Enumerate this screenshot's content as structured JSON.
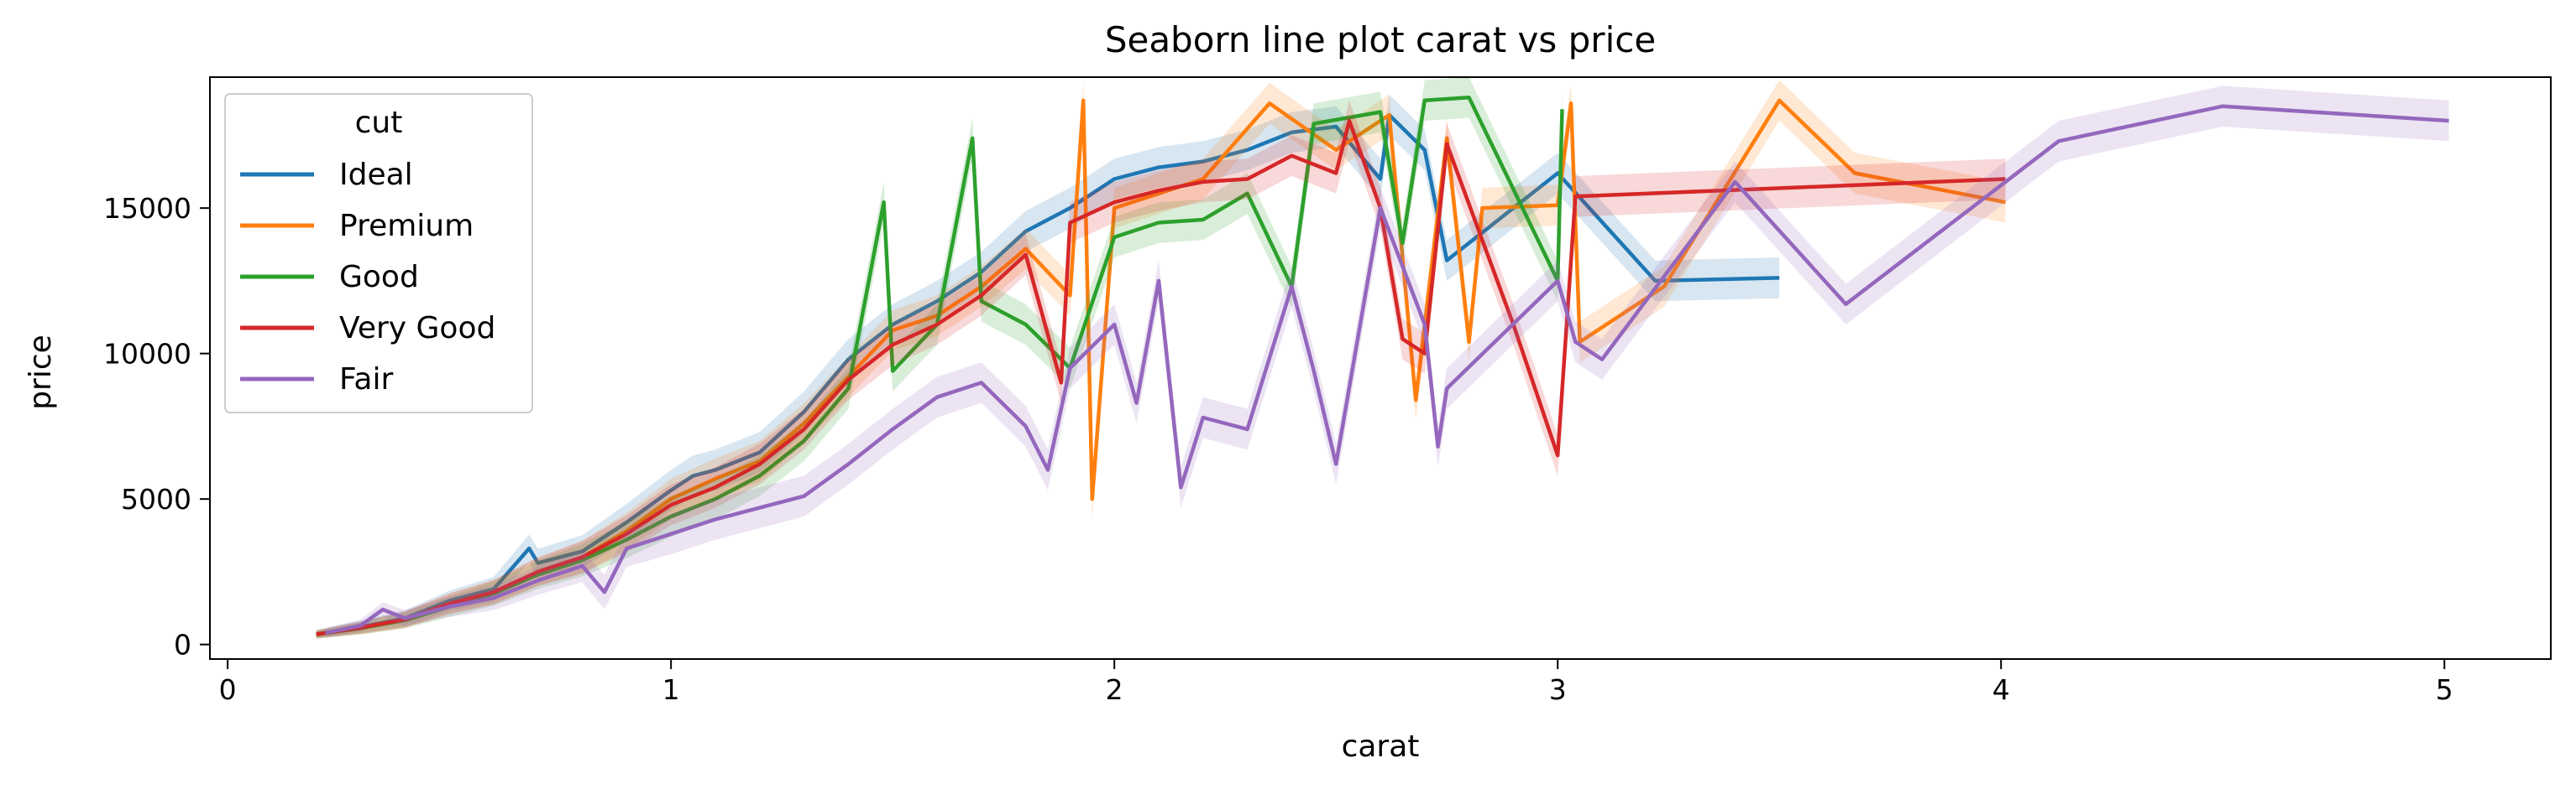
{
  "chart_data": {
    "type": "line",
    "title": "Seaborn line plot carat vs price",
    "xlabel": "carat",
    "ylabel": "price",
    "xlim": [
      -0.04,
      5.24
    ],
    "ylim": [
      -500,
      19500
    ],
    "xticks": [
      0,
      1,
      2,
      3,
      4,
      5
    ],
    "yticks": [
      0,
      5000,
      10000,
      15000
    ],
    "grid": false,
    "legend": {
      "title": "cut",
      "placement": "top-left"
    },
    "series": [
      {
        "name": "Ideal",
        "color": "#1f77b4",
        "points": [
          [
            0.2,
            360
          ],
          [
            0.3,
            600
          ],
          [
            0.4,
            900
          ],
          [
            0.5,
            1500
          ],
          [
            0.6,
            1900
          ],
          [
            0.68,
            3300
          ],
          [
            0.7,
            2800
          ],
          [
            0.8,
            3200
          ],
          [
            0.9,
            4200
          ],
          [
            1.0,
            5300
          ],
          [
            1.05,
            5800
          ],
          [
            1.1,
            6000
          ],
          [
            1.2,
            6600
          ],
          [
            1.3,
            8000
          ],
          [
            1.4,
            9800
          ],
          [
            1.5,
            11000
          ],
          [
            1.6,
            11800
          ],
          [
            1.7,
            12800
          ],
          [
            1.8,
            14200
          ],
          [
            1.9,
            15000
          ],
          [
            2.0,
            16000
          ],
          [
            2.1,
            16400
          ],
          [
            2.2,
            16600
          ],
          [
            2.3,
            17000
          ],
          [
            2.4,
            17600
          ],
          [
            2.5,
            17800
          ],
          [
            2.6,
            16000
          ],
          [
            2.62,
            18200
          ],
          [
            2.7,
            17000
          ],
          [
            2.75,
            13200
          ],
          [
            3.0,
            16200
          ],
          [
            3.22,
            12500
          ],
          [
            3.5,
            12600
          ]
        ]
      },
      {
        "name": "Premium",
        "color": "#ff7f0e",
        "points": [
          [
            0.2,
            350
          ],
          [
            0.3,
            550
          ],
          [
            0.4,
            850
          ],
          [
            0.5,
            1400
          ],
          [
            0.6,
            1800
          ],
          [
            0.7,
            2500
          ],
          [
            0.8,
            3000
          ],
          [
            0.9,
            3900
          ],
          [
            1.0,
            5000
          ],
          [
            1.1,
            5700
          ],
          [
            1.2,
            6300
          ],
          [
            1.3,
            7600
          ],
          [
            1.4,
            9200
          ],
          [
            1.5,
            10800
          ],
          [
            1.6,
            11300
          ],
          [
            1.7,
            12300
          ],
          [
            1.8,
            13600
          ],
          [
            1.9,
            12000
          ],
          [
            1.93,
            18700
          ],
          [
            1.95,
            5000
          ],
          [
            2.0,
            15000
          ],
          [
            2.1,
            15500
          ],
          [
            2.2,
            16000
          ],
          [
            2.35,
            18600
          ],
          [
            2.5,
            17000
          ],
          [
            2.62,
            18200
          ],
          [
            2.68,
            8400
          ],
          [
            2.75,
            17400
          ],
          [
            2.8,
            10400
          ],
          [
            2.83,
            15000
          ],
          [
            3.0,
            15100
          ],
          [
            3.03,
            18600
          ],
          [
            3.05,
            10400
          ],
          [
            3.24,
            12300
          ],
          [
            3.5,
            18700
          ],
          [
            3.67,
            16200
          ],
          [
            4.01,
            15200
          ]
        ]
      },
      {
        "name": "Good",
        "color": "#2ca02c",
        "points": [
          [
            0.2,
            340
          ],
          [
            0.3,
            560
          ],
          [
            0.4,
            830
          ],
          [
            0.5,
            1300
          ],
          [
            0.6,
            1750
          ],
          [
            0.7,
            2400
          ],
          [
            0.8,
            2900
          ],
          [
            0.9,
            3600
          ],
          [
            1.0,
            4400
          ],
          [
            1.1,
            5000
          ],
          [
            1.2,
            5800
          ],
          [
            1.3,
            7000
          ],
          [
            1.4,
            8800
          ],
          [
            1.48,
            15200
          ],
          [
            1.5,
            9400
          ],
          [
            1.6,
            11000
          ],
          [
            1.68,
            17400
          ],
          [
            1.7,
            11800
          ],
          [
            1.8,
            11000
          ],
          [
            1.9,
            9500
          ],
          [
            2.0,
            14000
          ],
          [
            2.1,
            14500
          ],
          [
            2.2,
            14600
          ],
          [
            2.3,
            15500
          ],
          [
            2.4,
            12300
          ],
          [
            2.45,
            17900
          ],
          [
            2.6,
            18300
          ],
          [
            2.65,
            13800
          ],
          [
            2.7,
            18700
          ],
          [
            2.8,
            18800
          ],
          [
            3.0,
            12500
          ],
          [
            3.01,
            18400
          ]
        ]
      },
      {
        "name": "Very Good",
        "color": "#d62728",
        "points": [
          [
            0.2,
            350
          ],
          [
            0.3,
            580
          ],
          [
            0.4,
            860
          ],
          [
            0.5,
            1400
          ],
          [
            0.6,
            1800
          ],
          [
            0.7,
            2500
          ],
          [
            0.8,
            3000
          ],
          [
            0.9,
            3800
          ],
          [
            1.0,
            4800
          ],
          [
            1.1,
            5400
          ],
          [
            1.2,
            6200
          ],
          [
            1.3,
            7400
          ],
          [
            1.4,
            9100
          ],
          [
            1.5,
            10300
          ],
          [
            1.6,
            11000
          ],
          [
            1.7,
            12000
          ],
          [
            1.8,
            13400
          ],
          [
            1.88,
            9000
          ],
          [
            1.9,
            14500
          ],
          [
            2.0,
            15200
          ],
          [
            2.1,
            15600
          ],
          [
            2.2,
            15900
          ],
          [
            2.3,
            16000
          ],
          [
            2.4,
            16800
          ],
          [
            2.5,
            16200
          ],
          [
            2.53,
            18000
          ],
          [
            2.6,
            15000
          ],
          [
            2.65,
            10500
          ],
          [
            2.7,
            10000
          ],
          [
            2.75,
            17200
          ],
          [
            2.9,
            11000
          ],
          [
            3.0,
            6500
          ],
          [
            3.04,
            15400
          ],
          [
            4.01,
            16000
          ]
        ]
      },
      {
        "name": "Fair",
        "color": "#9467bd",
        "points": [
          [
            0.22,
            400
          ],
          [
            0.3,
            650
          ],
          [
            0.35,
            1200
          ],
          [
            0.4,
            900
          ],
          [
            0.5,
            1300
          ],
          [
            0.6,
            1600
          ],
          [
            0.7,
            2200
          ],
          [
            0.8,
            2700
          ],
          [
            0.85,
            1800
          ],
          [
            0.9,
            3300
          ],
          [
            1.0,
            3800
          ],
          [
            1.1,
            4300
          ],
          [
            1.2,
            4700
          ],
          [
            1.3,
            5100
          ],
          [
            1.4,
            6200
          ],
          [
            1.5,
            7400
          ],
          [
            1.6,
            8500
          ],
          [
            1.7,
            9000
          ],
          [
            1.8,
            7500
          ],
          [
            1.85,
            6000
          ],
          [
            1.9,
            9500
          ],
          [
            2.0,
            11000
          ],
          [
            2.05,
            8300
          ],
          [
            2.1,
            12500
          ],
          [
            2.15,
            5400
          ],
          [
            2.2,
            7800
          ],
          [
            2.3,
            7400
          ],
          [
            2.4,
            12300
          ],
          [
            2.45,
            9400
          ],
          [
            2.5,
            6200
          ],
          [
            2.6,
            15000
          ],
          [
            2.7,
            11000
          ],
          [
            2.73,
            6800
          ],
          [
            2.75,
            8800
          ],
          [
            3.0,
            12500
          ],
          [
            3.04,
            10400
          ],
          [
            3.1,
            9800
          ],
          [
            3.4,
            15900
          ],
          [
            3.65,
            11700
          ],
          [
            4.13,
            17300
          ],
          [
            4.5,
            18500
          ],
          [
            5.01,
            18000
          ]
        ]
      }
    ]
  }
}
